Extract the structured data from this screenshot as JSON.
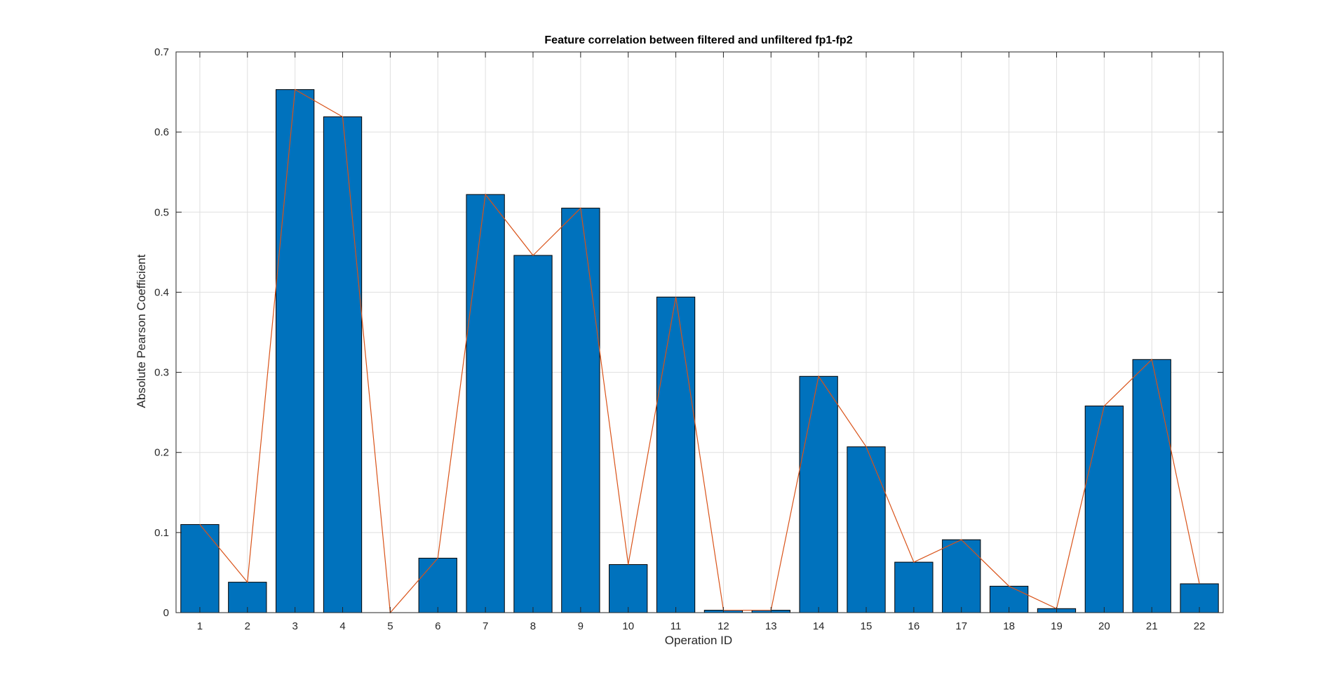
{
  "chart_data": {
    "type": "bar",
    "title": "Feature correlation between filtered and unfiltered fp1-fp2",
    "xlabel": "Operation ID",
    "ylabel": "Absolute Pearson Coefficient",
    "categories": [
      "1",
      "2",
      "3",
      "4",
      "5",
      "6",
      "7",
      "8",
      "9",
      "10",
      "11",
      "12",
      "13",
      "14",
      "15",
      "16",
      "17",
      "18",
      "19",
      "20",
      "21",
      "22"
    ],
    "series": [
      {
        "values": [
          0.11,
          0.038,
          0.653,
          0.619,
          0.0,
          0.068,
          0.522,
          0.446,
          0.505,
          0.06,
          0.394,
          0.003,
          0.003,
          0.295,
          0.207,
          0.063,
          0.091,
          0.033,
          0.005,
          0.258,
          0.316,
          0.036
        ]
      }
    ],
    "overlay_line": true,
    "ylim": [
      0,
      0.7
    ],
    "yticks": [
      "0",
      "0.1",
      "0.2",
      "0.3",
      "0.4",
      "0.5",
      "0.6",
      "0.7"
    ],
    "grid": true,
    "colors": {
      "bar": "#0072BD",
      "line": "#D95319",
      "grid": "#DFDFDF",
      "axis": "#262626"
    }
  }
}
